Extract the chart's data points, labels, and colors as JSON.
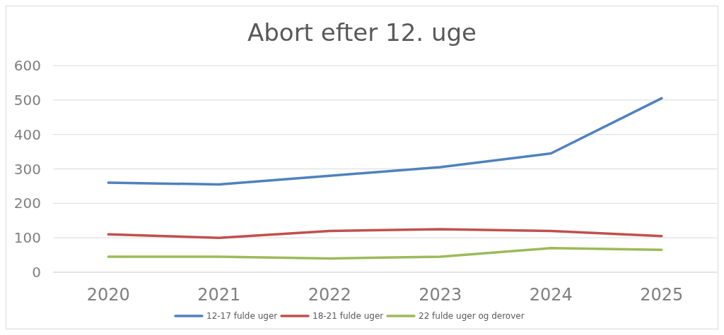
{
  "chart_data": {
    "type": "line",
    "title": "Abort efter 12. uge",
    "categories": [
      "2020",
      "2021",
      "2022",
      "2023",
      "2024",
      "2025"
    ],
    "series": [
      {
        "name": "12-17 fulde uger",
        "color": "#4f81bd",
        "values": [
          260,
          255,
          280,
          305,
          345,
          505
        ]
      },
      {
        "name": "18-21 fulde uger",
        "color": "#c0504d",
        "values": [
          110,
          100,
          120,
          125,
          120,
          105
        ]
      },
      {
        "name": "22 fulde uger og derover",
        "color": "#9bbb59",
        "values": [
          45,
          45,
          40,
          45,
          70,
          65
        ]
      }
    ],
    "ylim": [
      0,
      600
    ],
    "yticks": [
      0,
      100,
      200,
      300,
      400,
      500,
      600
    ],
    "grid": "y",
    "legend": "bottom",
    "marker": "none",
    "line_style": "solid"
  }
}
